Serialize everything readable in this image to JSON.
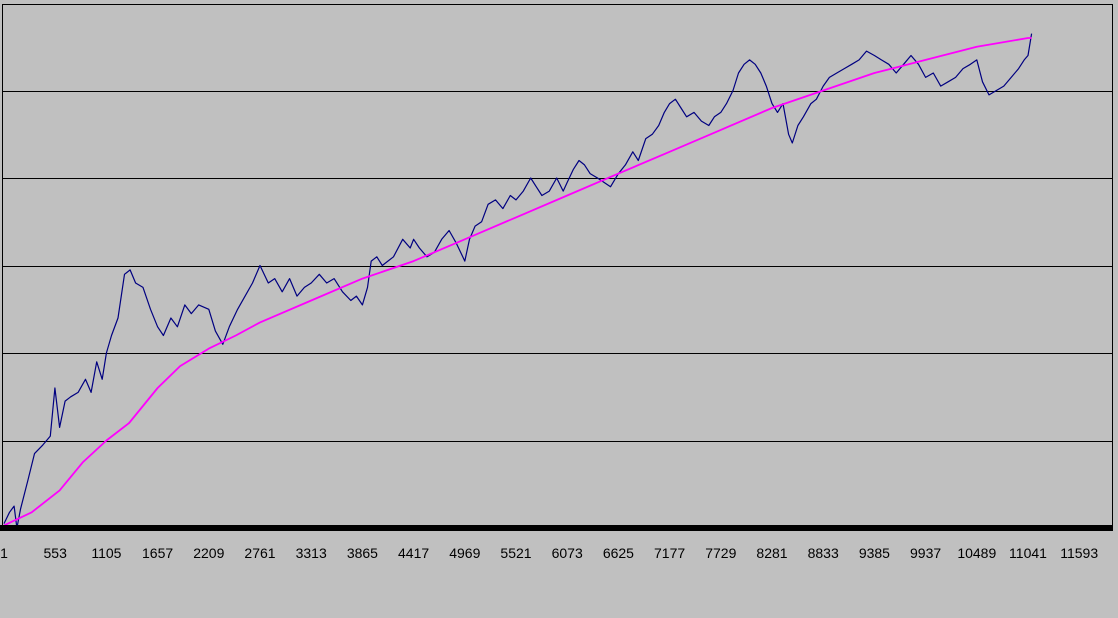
{
  "chart_data": {
    "type": "line",
    "title": "",
    "xlabel": "",
    "ylabel": "",
    "grid": true,
    "legend": "none",
    "x_ticks": [
      1,
      553,
      1105,
      1657,
      2209,
      2761,
      3313,
      3865,
      4417,
      4969,
      5521,
      6073,
      6625,
      7177,
      7729,
      8281,
      8833,
      9385,
      9937,
      10489,
      11041,
      11593
    ],
    "xlim": [
      1,
      12145
    ],
    "ylim": [
      0,
      6
    ],
    "y_gridlines": [
      1,
      2,
      3,
      4,
      5
    ],
    "colors": {
      "background": "#c0c0c0",
      "gridline": "#000000",
      "axis": "#000000",
      "series_1": "#000080",
      "series_2": "#ff00ff"
    },
    "series": [
      {
        "name": "",
        "color": "#000080",
        "points": [
          [
            1,
            0.05
          ],
          [
            60,
            0.18
          ],
          [
            110,
            0.25
          ],
          [
            140,
            0.0
          ],
          [
            180,
            0.22
          ],
          [
            260,
            0.55
          ],
          [
            330,
            0.85
          ],
          [
            420,
            0.95
          ],
          [
            500,
            1.05
          ],
          [
            550,
            1.6
          ],
          [
            600,
            1.15
          ],
          [
            660,
            1.45
          ],
          [
            720,
            1.5
          ],
          [
            800,
            1.55
          ],
          [
            880,
            1.7
          ],
          [
            940,
            1.55
          ],
          [
            1000,
            1.9
          ],
          [
            1060,
            1.7
          ],
          [
            1105,
            2.0
          ],
          [
            1160,
            2.2
          ],
          [
            1230,
            2.4
          ],
          [
            1300,
            2.9
          ],
          [
            1360,
            2.95
          ],
          [
            1420,
            2.8
          ],
          [
            1500,
            2.75
          ],
          [
            1580,
            2.5
          ],
          [
            1657,
            2.3
          ],
          [
            1720,
            2.2
          ],
          [
            1800,
            2.4
          ],
          [
            1870,
            2.3
          ],
          [
            1950,
            2.55
          ],
          [
            2020,
            2.45
          ],
          [
            2100,
            2.55
          ],
          [
            2209,
            2.5
          ],
          [
            2280,
            2.25
          ],
          [
            2360,
            2.1
          ],
          [
            2430,
            2.3
          ],
          [
            2520,
            2.5
          ],
          [
            2600,
            2.65
          ],
          [
            2680,
            2.8
          ],
          [
            2761,
            3.0
          ],
          [
            2850,
            2.8
          ],
          [
            2920,
            2.85
          ],
          [
            3000,
            2.7
          ],
          [
            3080,
            2.85
          ],
          [
            3160,
            2.65
          ],
          [
            3240,
            2.75
          ],
          [
            3313,
            2.8
          ],
          [
            3400,
            2.9
          ],
          [
            3480,
            2.8
          ],
          [
            3560,
            2.85
          ],
          [
            3650,
            2.7
          ],
          [
            3740,
            2.6
          ],
          [
            3800,
            2.65
          ],
          [
            3865,
            2.55
          ],
          [
            3920,
            2.75
          ],
          [
            3960,
            3.05
          ],
          [
            4020,
            3.1
          ],
          [
            4080,
            3.0
          ],
          [
            4140,
            3.05
          ],
          [
            4200,
            3.1
          ],
          [
            4300,
            3.3
          ],
          [
            4380,
            3.2
          ],
          [
            4417,
            3.3
          ],
          [
            4480,
            3.2
          ],
          [
            4560,
            3.1
          ],
          [
            4640,
            3.15
          ],
          [
            4720,
            3.3
          ],
          [
            4800,
            3.4
          ],
          [
            4880,
            3.25
          ],
          [
            4969,
            3.05
          ],
          [
            5020,
            3.3
          ],
          [
            5080,
            3.45
          ],
          [
            5150,
            3.5
          ],
          [
            5220,
            3.7
          ],
          [
            5300,
            3.75
          ],
          [
            5380,
            3.65
          ],
          [
            5460,
            3.8
          ],
          [
            5521,
            3.75
          ],
          [
            5600,
            3.85
          ],
          [
            5680,
            4.0
          ],
          [
            5740,
            3.9
          ],
          [
            5800,
            3.8
          ],
          [
            5880,
            3.85
          ],
          [
            5960,
            4.0
          ],
          [
            6030,
            3.85
          ],
          [
            6073,
            3.95
          ],
          [
            6140,
            4.1
          ],
          [
            6200,
            4.2
          ],
          [
            6260,
            4.15
          ],
          [
            6320,
            4.05
          ],
          [
            6400,
            4.0
          ],
          [
            6470,
            3.95
          ],
          [
            6540,
            3.9
          ],
          [
            6625,
            4.05
          ],
          [
            6700,
            4.15
          ],
          [
            6780,
            4.3
          ],
          [
            6840,
            4.2
          ],
          [
            6920,
            4.45
          ],
          [
            6990,
            4.5
          ],
          [
            7060,
            4.6
          ],
          [
            7120,
            4.75
          ],
          [
            7177,
            4.85
          ],
          [
            7240,
            4.9
          ],
          [
            7300,
            4.8
          ],
          [
            7360,
            4.7
          ],
          [
            7440,
            4.75
          ],
          [
            7520,
            4.65
          ],
          [
            7600,
            4.6
          ],
          [
            7660,
            4.7
          ],
          [
            7729,
            4.75
          ],
          [
            7790,
            4.85
          ],
          [
            7860,
            5.0
          ],
          [
            7920,
            5.2
          ],
          [
            7980,
            5.3
          ],
          [
            8040,
            5.35
          ],
          [
            8100,
            5.3
          ],
          [
            8160,
            5.2
          ],
          [
            8220,
            5.05
          ],
          [
            8281,
            4.85
          ],
          [
            8340,
            4.75
          ],
          [
            8400,
            4.85
          ],
          [
            8460,
            4.5
          ],
          [
            8500,
            4.4
          ],
          [
            8560,
            4.6
          ],
          [
            8620,
            4.7
          ],
          [
            8700,
            4.85
          ],
          [
            8760,
            4.9
          ],
          [
            8833,
            5.05
          ],
          [
            8900,
            5.15
          ],
          [
            8980,
            5.2
          ],
          [
            9060,
            5.25
          ],
          [
            9140,
            5.3
          ],
          [
            9220,
            5.35
          ],
          [
            9300,
            5.45
          ],
          [
            9385,
            5.4
          ],
          [
            9460,
            5.35
          ],
          [
            9540,
            5.3
          ],
          [
            9620,
            5.2
          ],
          [
            9700,
            5.3
          ],
          [
            9780,
            5.4
          ],
          [
            9860,
            5.3
          ],
          [
            9937,
            5.15
          ],
          [
            10020,
            5.2
          ],
          [
            10100,
            5.05
          ],
          [
            10180,
            5.1
          ],
          [
            10260,
            5.15
          ],
          [
            10340,
            5.25
          ],
          [
            10420,
            5.3
          ],
          [
            10489,
            5.35
          ],
          [
            10550,
            5.1
          ],
          [
            10620,
            4.95
          ],
          [
            10700,
            5.0
          ],
          [
            10780,
            5.05
          ],
          [
            10860,
            5.15
          ],
          [
            10940,
            5.25
          ],
          [
            11000,
            5.35
          ],
          [
            11041,
            5.4
          ],
          [
            11080,
            5.65
          ]
        ]
      },
      {
        "name": "",
        "color": "#ff00ff",
        "points": [
          [
            1,
            0.03
          ],
          [
            300,
            0.18
          ],
          [
            600,
            0.43
          ],
          [
            850,
            0.75
          ],
          [
            1105,
            1.0
          ],
          [
            1350,
            1.2
          ],
          [
            1657,
            1.6
          ],
          [
            1900,
            1.85
          ],
          [
            2209,
            2.05
          ],
          [
            2500,
            2.2
          ],
          [
            2761,
            2.35
          ],
          [
            3313,
            2.6
          ],
          [
            3865,
            2.85
          ],
          [
            4417,
            3.05
          ],
          [
            4969,
            3.3
          ],
          [
            5521,
            3.55
          ],
          [
            6073,
            3.8
          ],
          [
            6625,
            4.05
          ],
          [
            7177,
            4.3
          ],
          [
            7729,
            4.55
          ],
          [
            8281,
            4.8
          ],
          [
            8833,
            5.0
          ],
          [
            9385,
            5.2
          ],
          [
            9937,
            5.35
          ],
          [
            10489,
            5.5
          ],
          [
            11041,
            5.6
          ],
          [
            11080,
            5.6
          ]
        ]
      }
    ]
  }
}
